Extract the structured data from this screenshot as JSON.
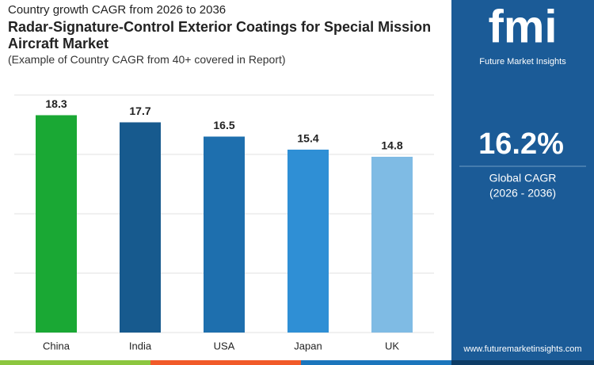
{
  "chart_data": {
    "type": "bar",
    "subtitle": "Country growth CAGR from 2026 to 2036",
    "title": "Radar-Signature-Control Exterior Coatings for Special Mission Aircraft Market",
    "note": "(Example of Country CAGR from 40+ covered in Report)",
    "categories": [
      "China",
      "India",
      "USA",
      "Japan",
      "UK"
    ],
    "values": [
      18.3,
      17.7,
      16.5,
      15.4,
      14.8
    ],
    "colors": [
      "#1aa834",
      "#175a8e",
      "#1e6fae",
      "#2f8fd5",
      "#7fbbe4"
    ],
    "ylim": [
      0,
      20
    ],
    "yticks": [
      0,
      5,
      10,
      15,
      20
    ],
    "grid": true
  },
  "panel": {
    "logo": "fmi",
    "brand": "Future Market Insights",
    "value": "16.2%",
    "label": "Global CAGR",
    "period": "(2026 - 2036)",
    "website": "www.futuremarketinsights.com"
  }
}
